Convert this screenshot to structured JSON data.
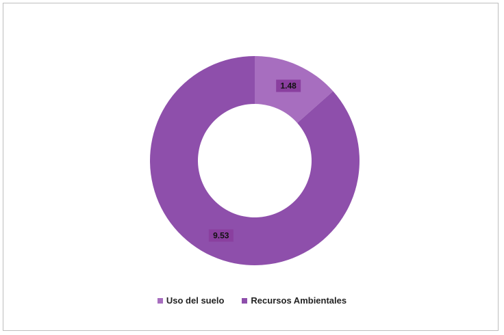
{
  "chart_data": {
    "type": "pie",
    "variant": "donut",
    "title": "",
    "categories": [
      "Uso del suelo",
      "Recursos Ambientales"
    ],
    "values": [
      1.48,
      9.53
    ],
    "value_labels": [
      "1.48",
      "9.53"
    ],
    "colors": [
      "#a76ebf",
      "#8e4fab"
    ],
    "legend_position": "bottom"
  },
  "legend": {
    "items": [
      {
        "label": "Uso del suelo",
        "color": "#a76ebf"
      },
      {
        "label": "Recursos Ambientales",
        "color": "#8e4fab"
      }
    ]
  }
}
